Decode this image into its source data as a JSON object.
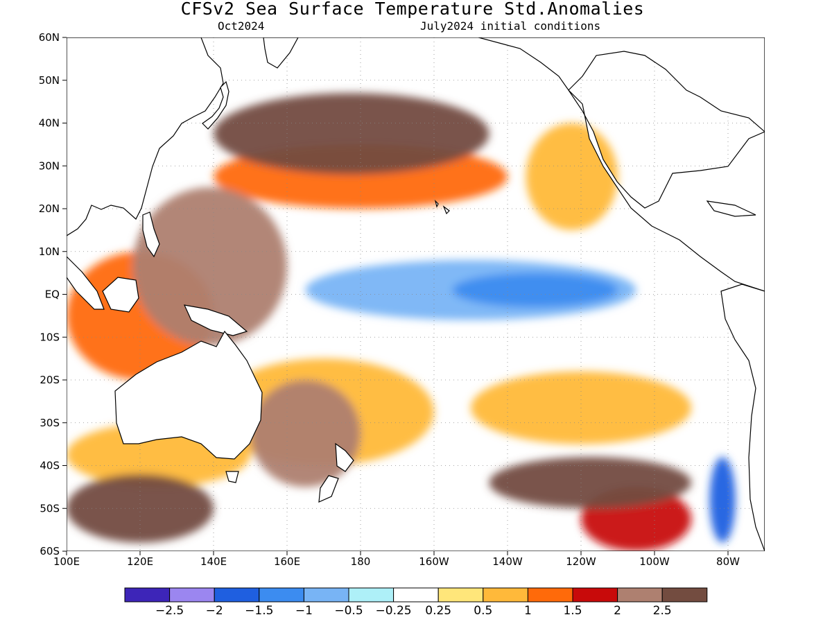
{
  "header": {
    "title": "CFSv2 Sea Surface Temperature Std.Anomalies",
    "valid": "Oct2024",
    "init": "July2024 initial conditions"
  },
  "map": {
    "lon_range": [
      100,
      290
    ],
    "lat_range": [
      -60,
      60
    ],
    "grid": true,
    "lat_ticks": [
      "60N",
      "50N",
      "40N",
      "30N",
      "20N",
      "10N",
      "EQ",
      "10S",
      "20S",
      "30S",
      "40S",
      "50S",
      "60S"
    ],
    "lon_ticks": [
      "100E",
      "120E",
      "140E",
      "160E",
      "180",
      "160W",
      "140W",
      "120W",
      "100W",
      "80W"
    ],
    "anomaly_regions": [
      {
        "name": "equatorial-cold-tongue",
        "lon": [
          165,
          255
        ],
        "lat": [
          -6,
          8
        ],
        "level": -1
      },
      {
        "name": "nino34-core",
        "lon": [
          205,
          250
        ],
        "lat": [
          -3,
          5
        ],
        "level": -1.5
      },
      {
        "name": "west-pacific-warm-pool",
        "lon": [
          118,
          160
        ],
        "lat": [
          -12,
          25
        ],
        "level": 2
      },
      {
        "name": "north-pacific-warm-band",
        "lon": [
          140,
          215
        ],
        "lat": [
          28,
          47
        ],
        "level": 2.5
      },
      {
        "name": "south-pacific-warm-band",
        "lon": [
          215,
          270
        ],
        "lat": [
          -50,
          -38
        ],
        "level": 2.5
      },
      {
        "name": "chile-cold-anomaly",
        "lon": [
          275,
          282
        ],
        "lat": [
          -58,
          -38
        ],
        "level": -2
      },
      {
        "name": "tasman-warm",
        "lon": [
          150,
          180
        ],
        "lat": [
          -45,
          -20
        ],
        "level": 2
      },
      {
        "name": "southern-ocean-warm",
        "lon": [
          100,
          140
        ],
        "lat": [
          -58,
          -42
        ],
        "level": 2.5
      }
    ]
  },
  "colorbar": {
    "colors": [
      "#3d25b8",
      "#9b86f0",
      "#1f5fe0",
      "#3c8cf0",
      "#78b4f5",
      "#aef0f8",
      "#ffffff",
      "#ffe67a",
      "#ffb93a",
      "#ff6a0a",
      "#c80a0a",
      "#ae8070",
      "#734c40"
    ],
    "labels": [
      "−2.5",
      "−2",
      "−1.5",
      "−1",
      "−0.5",
      "−0.25",
      "0.25",
      "0.5",
      "1",
      "1.5",
      "2",
      "2.5"
    ]
  }
}
